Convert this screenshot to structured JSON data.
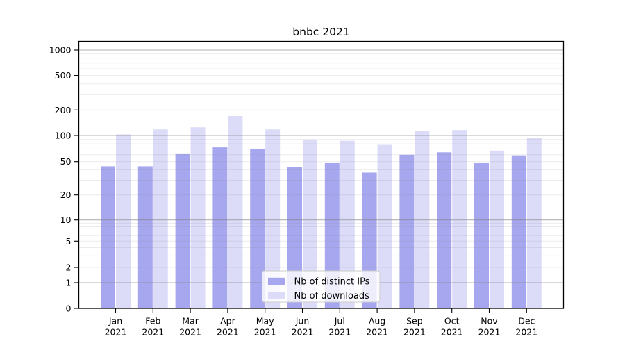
{
  "window": {
    "background": "#ffffff"
  },
  "chart_data": {
    "type": "bar",
    "title": "bnbc 2021",
    "categories": [
      "Jan 2021",
      "Feb 2021",
      "Mar 2021",
      "Apr 2021",
      "May 2021",
      "Jun 2021",
      "Jul 2021",
      "Aug 2021",
      "Sep 2021",
      "Oct 2021",
      "Nov 2021",
      "Dec 2021"
    ],
    "series": [
      {
        "name": "Nb of distinct IPs",
        "color": "#a7a7f0",
        "values": [
          44,
          44,
          61,
          73,
          70,
          43,
          48,
          37,
          60,
          64,
          48,
          59
        ]
      },
      {
        "name": "Nb of downloads",
        "color": "#dcdcf8",
        "values": [
          103,
          118,
          125,
          170,
          118,
          90,
          87,
          78,
          114,
          116,
          67,
          93
        ]
      }
    ],
    "y_ticks": [
      0,
      1,
      2,
      5,
      10,
      20,
      50,
      100,
      200,
      500,
      1000
    ],
    "y_scale": "symlog",
    "ylim": [
      0,
      1260
    ],
    "xlabel": "",
    "ylabel": "",
    "grid": {
      "shown": true,
      "major_line_values": [
        1,
        10,
        100,
        1000
      ],
      "major_color": "#b0b0b0",
      "minor_color": "#ededed"
    },
    "legend": {
      "position": "lower center",
      "background": "#ffffff",
      "border_color": "#cccccc"
    },
    "axes": {
      "spine_color": "#000000",
      "text_color": "#000000"
    }
  }
}
